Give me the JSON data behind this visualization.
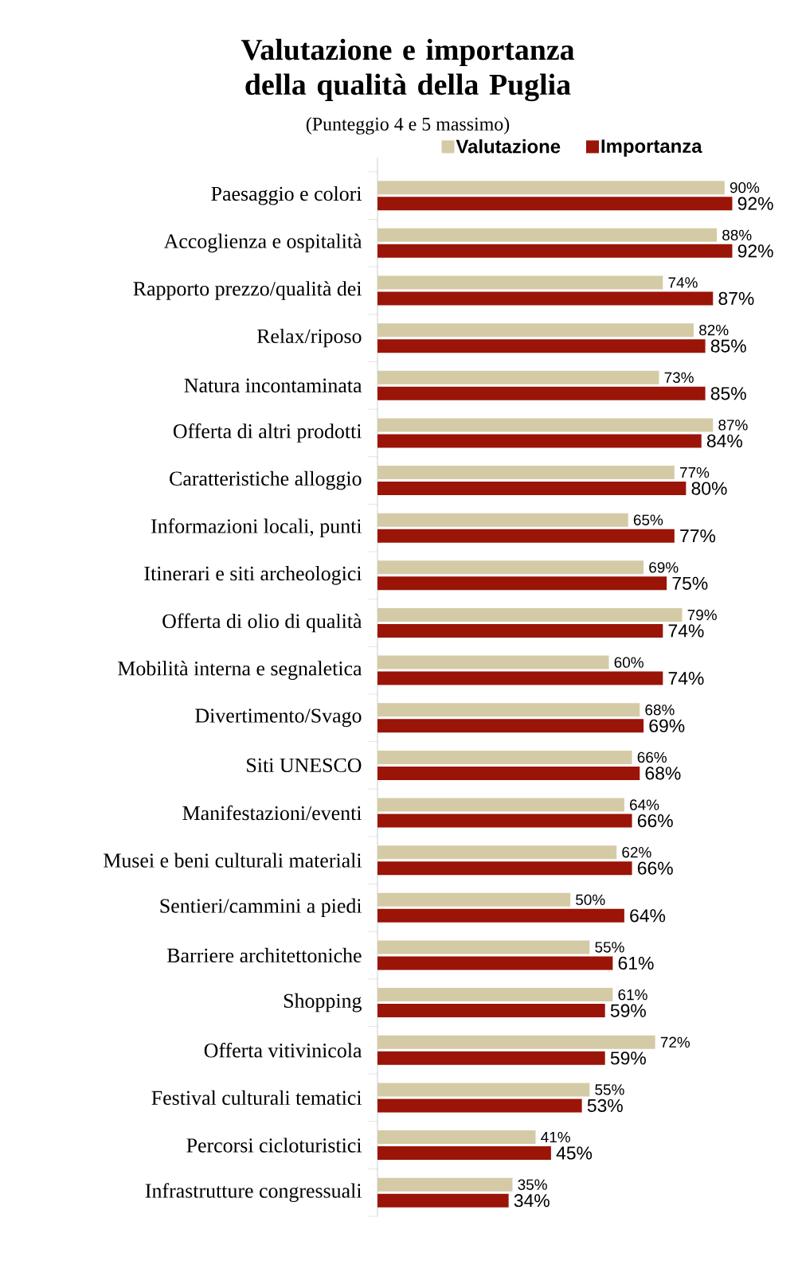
{
  "chart_data": {
    "type": "bar",
    "orientation": "horizontal",
    "title": "Valutazione e importanza della qualità della Puglia",
    "subtitle": "(Punteggio 4 e 5 massimo)",
    "categories": [
      "Paesaggio e colori",
      "Accoglienza e ospitalità",
      "Rapporto prezzo/qualità dei",
      "Relax/riposo",
      "Natura incontaminata",
      "Offerta di altri prodotti",
      "Caratteristiche alloggio",
      "Informazioni locali, punti",
      "Itinerari e siti archeologici",
      "Offerta di olio di qualità",
      "Mobilità interna e segnaletica",
      "Divertimento/Svago",
      "Siti UNESCO",
      "Manifestazioni/eventi",
      "Musei e beni culturali materiali",
      "Sentieri/cammini a piedi",
      "Barriere architettoniche",
      "Shopping",
      "Offerta vitivinicola",
      "Festival culturali tematici",
      "Percorsi cicloturistici",
      "Infrastrutture congressuali"
    ],
    "series": [
      {
        "name": "Valutazione",
        "color": "#d4cba6",
        "values": [
          90,
          88,
          74,
          82,
          73,
          87,
          77,
          65,
          69,
          79,
          60,
          68,
          66,
          64,
          62,
          50,
          55,
          61,
          72,
          55,
          41,
          35
        ],
        "value_labels": [
          "90%",
          "88%",
          "74%",
          "82%",
          "73%",
          "87%",
          "77%",
          "65%",
          "69%",
          "79%",
          "60%",
          "68%",
          "66%",
          "64%",
          "62%",
          "50%",
          "55%",
          "61%",
          "72%",
          "55%",
          "41%",
          "35%"
        ]
      },
      {
        "name": "Importanza",
        "color": "#9a1407",
        "values": [
          92,
          92,
          87,
          85,
          85,
          84,
          80,
          77,
          75,
          74,
          74,
          69,
          68,
          66,
          66,
          64,
          61,
          59,
          59,
          53,
          45,
          34
        ],
        "value_labels": [
          "92%",
          "92%",
          "87%",
          "85%",
          "85%",
          "84%",
          "80%",
          "77%",
          "75%",
          "74%",
          "74%",
          "69%",
          "68%",
          "66%",
          "66%",
          "64%",
          "61%",
          "59%",
          "59%",
          "53%",
          "45%",
          "34%"
        ]
      }
    ],
    "legend": "top"
  }
}
